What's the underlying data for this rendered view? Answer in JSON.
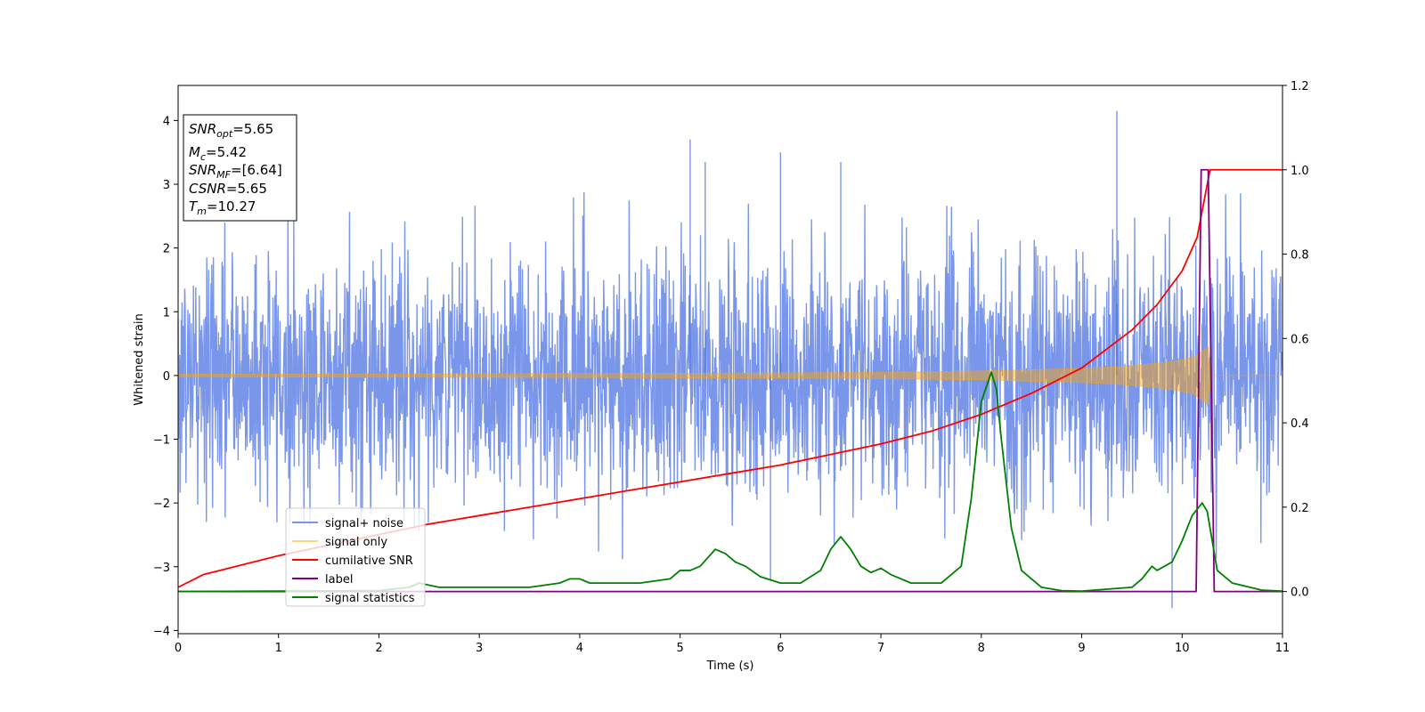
{
  "chart_data": {
    "type": "line",
    "xlabel": "Time (s)",
    "ylabel": "Whitened strain",
    "xlim": [
      0,
      11
    ],
    "ylim": [
      -4.05,
      4.55
    ],
    "y2lim": [
      -0.1,
      1.2
    ],
    "x_ticks": [
      "0",
      "1",
      "2",
      "3",
      "4",
      "5",
      "6",
      "7",
      "8",
      "9",
      "10",
      "11"
    ],
    "y_ticks": [
      "−4",
      "−3",
      "−2",
      "−1",
      "0",
      "1",
      "2",
      "3",
      "4"
    ],
    "y2_ticks": [
      "0.0",
      "0.2",
      "0.4",
      "0.6",
      "0.8",
      "1.0",
      "1.2"
    ],
    "legend_position": "lower-left",
    "grid": false,
    "info_box": [
      {
        "main": "SNR",
        "sub": "opt",
        "rest": "=5.65"
      },
      {
        "main": "M",
        "sub": "c",
        "rest": "=5.42"
      },
      {
        "main": "SNR",
        "sub": "MF",
        "rest": "=[6.64]"
      },
      {
        "main": "CSNR",
        "sub": "",
        "rest": "=5.65"
      },
      {
        "main": "T",
        "sub": "m",
        "rest": "=10.27"
      }
    ],
    "series": [
      {
        "name": "signal+ noise",
        "axis": "left",
        "color": "#4169e1",
        "kind": "noise",
        "sample_rate_hz": 256,
        "std": 0.95,
        "envelope_max": [
          [
            0,
            2.5
          ],
          [
            0.3,
            2.9
          ],
          [
            1.0,
            2.6
          ],
          [
            2.0,
            2.7
          ],
          [
            3.0,
            2.9
          ],
          [
            4.0,
            3.0
          ],
          [
            5.1,
            3.7
          ],
          [
            5.25,
            3.35
          ],
          [
            6.0,
            3.5
          ],
          [
            6.6,
            3.35
          ],
          [
            7.5,
            2.6
          ],
          [
            8.5,
            3.0
          ],
          [
            9.35,
            4.15
          ],
          [
            10.0,
            2.8
          ],
          [
            11,
            2.9
          ]
        ],
        "envelope_min": [
          [
            0,
            -2.2
          ],
          [
            0.35,
            -2.9
          ],
          [
            1.0,
            -2.3
          ],
          [
            2.0,
            -2.5
          ],
          [
            3.0,
            -2.5
          ],
          [
            3.5,
            -2.9
          ],
          [
            4.0,
            -2.8
          ],
          [
            5.0,
            -3.0
          ],
          [
            5.9,
            -3.2
          ],
          [
            6.5,
            -2.8
          ],
          [
            7.5,
            -2.7
          ],
          [
            8.5,
            -2.8
          ],
          [
            9.9,
            -3.65
          ],
          [
            10.5,
            -2.8
          ],
          [
            11,
            -2.5
          ]
        ]
      },
      {
        "name": "signal only",
        "axis": "left",
        "color": "#ffa500",
        "kind": "chirp",
        "amplitude_envelope": [
          [
            0,
            0.02
          ],
          [
            4,
            0.03
          ],
          [
            6,
            0.04
          ],
          [
            7,
            0.05
          ],
          [
            8,
            0.07
          ],
          [
            9,
            0.11
          ],
          [
            9.5,
            0.15
          ],
          [
            9.9,
            0.22
          ],
          [
            10.1,
            0.28
          ],
          [
            10.27,
            0.45
          ],
          [
            10.28,
            0.0
          ],
          [
            11,
            0.0
          ]
        ]
      },
      {
        "name": "cumilative SNR",
        "axis": "right",
        "color": "#ff0000",
        "x": [
          0,
          0.25,
          0.5,
          1,
          1.5,
          2,
          2.5,
          3,
          3.5,
          4,
          4.5,
          5,
          5.5,
          6,
          6.5,
          7,
          7.5,
          8,
          8.5,
          9,
          9.5,
          9.75,
          10,
          10.15,
          10.27,
          10.28,
          11
        ],
        "values": [
          0.01,
          0.04,
          0.055,
          0.085,
          0.11,
          0.135,
          0.16,
          0.18,
          0.2,
          0.22,
          0.24,
          0.26,
          0.28,
          0.3,
          0.325,
          0.35,
          0.38,
          0.42,
          0.47,
          0.53,
          0.62,
          0.68,
          0.76,
          0.84,
          0.99,
          1.0,
          1.0
        ]
      },
      {
        "name": "label",
        "axis": "right",
        "color": "#800080",
        "x": [
          0,
          10.14,
          10.19,
          10.26,
          10.32,
          11
        ],
        "values": [
          0,
          0,
          1,
          1,
          0,
          0
        ]
      },
      {
        "name": "signal statistics",
        "axis": "right",
        "color": "#008000",
        "x": [
          0,
          1,
          2,
          2.3,
          2.4,
          2.6,
          3,
          3.5,
          3.8,
          3.9,
          4.0,
          4.1,
          4.3,
          4.6,
          4.9,
          5.0,
          5.1,
          5.2,
          5.35,
          5.45,
          5.55,
          5.65,
          5.8,
          6.0,
          6.2,
          6.4,
          6.5,
          6.6,
          6.7,
          6.8,
          6.9,
          7.0,
          7.1,
          7.3,
          7.6,
          7.8,
          7.9,
          8.0,
          8.1,
          8.15,
          8.2,
          8.3,
          8.4,
          8.6,
          8.8,
          9.0,
          9.5,
          9.6,
          9.7,
          9.75,
          9.9,
          10.0,
          10.1,
          10.2,
          10.25,
          10.35,
          10.5,
          10.8,
          11
        ],
        "values": [
          0.0,
          0.001,
          0.002,
          0.01,
          0.02,
          0.01,
          0.01,
          0.01,
          0.02,
          0.03,
          0.03,
          0.02,
          0.02,
          0.02,
          0.03,
          0.05,
          0.05,
          0.06,
          0.1,
          0.09,
          0.07,
          0.06,
          0.035,
          0.02,
          0.02,
          0.05,
          0.1,
          0.13,
          0.1,
          0.06,
          0.045,
          0.055,
          0.04,
          0.02,
          0.02,
          0.06,
          0.22,
          0.45,
          0.52,
          0.48,
          0.36,
          0.15,
          0.05,
          0.01,
          0.002,
          0.001,
          0.01,
          0.03,
          0.06,
          0.05,
          0.07,
          0.12,
          0.18,
          0.21,
          0.19,
          0.05,
          0.02,
          0.003,
          0.001
        ]
      }
    ]
  }
}
